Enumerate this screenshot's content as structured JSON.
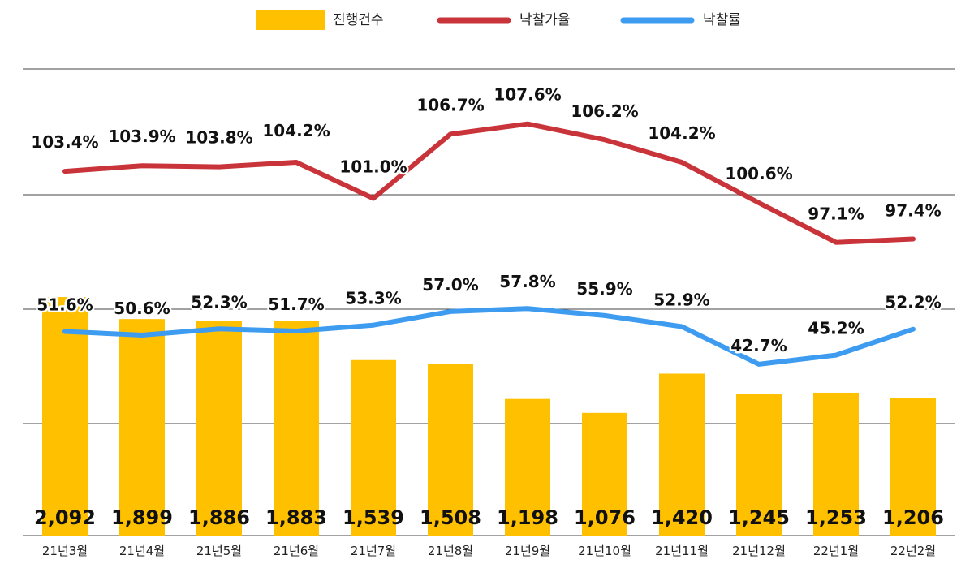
{
  "chart_data": {
    "type": "bar",
    "categories": [
      "21년3월",
      "21년4월",
      "21년5월",
      "21년6월",
      "21년7월",
      "21년8월",
      "21년9월",
      "21년10월",
      "21년11월",
      "21년12월",
      "22년1월",
      "22년2월"
    ],
    "series": [
      {
        "name": "진행건수",
        "type": "bar",
        "color": "#FFC000",
        "values": [
          2092,
          1899,
          1886,
          1883,
          1539,
          1508,
          1198,
          1076,
          1420,
          1245,
          1253,
          1206
        ],
        "labels": [
          "2,092",
          "1,899",
          "1,886",
          "1,883",
          "1,539",
          "1,508",
          "1,198",
          "1,076",
          "1,420",
          "1,245",
          "1,253",
          "1,206"
        ]
      },
      {
        "name": "낙찰가율",
        "type": "line",
        "color": "#C9343A",
        "values": [
          103.4,
          103.9,
          103.8,
          104.2,
          101.0,
          106.7,
          107.6,
          106.2,
          104.2,
          100.6,
          97.1,
          97.4
        ],
        "labels": [
          "103.4%",
          "103.9%",
          "103.8%",
          "104.2%",
          "101.0%",
          "106.7%",
          "107.6%",
          "106.2%",
          "104.2%",
          "100.6%",
          "97.1%",
          "97.4%"
        ]
      },
      {
        "name": "낙찰률",
        "type": "line",
        "color": "#3D9BF0",
        "values": [
          51.6,
          50.6,
          52.3,
          51.7,
          53.3,
          57.0,
          57.8,
          55.9,
          52.9,
          42.7,
          45.2,
          52.2
        ],
        "labels": [
          "51.6%",
          "50.6%",
          "52.3%",
          "51.7%",
          "53.3%",
          "57.0%",
          "57.8%",
          "55.9%",
          "52.9%",
          "42.7%",
          "45.2%",
          "52.2%"
        ]
      }
    ],
    "legend": "top-center",
    "grid": true
  }
}
